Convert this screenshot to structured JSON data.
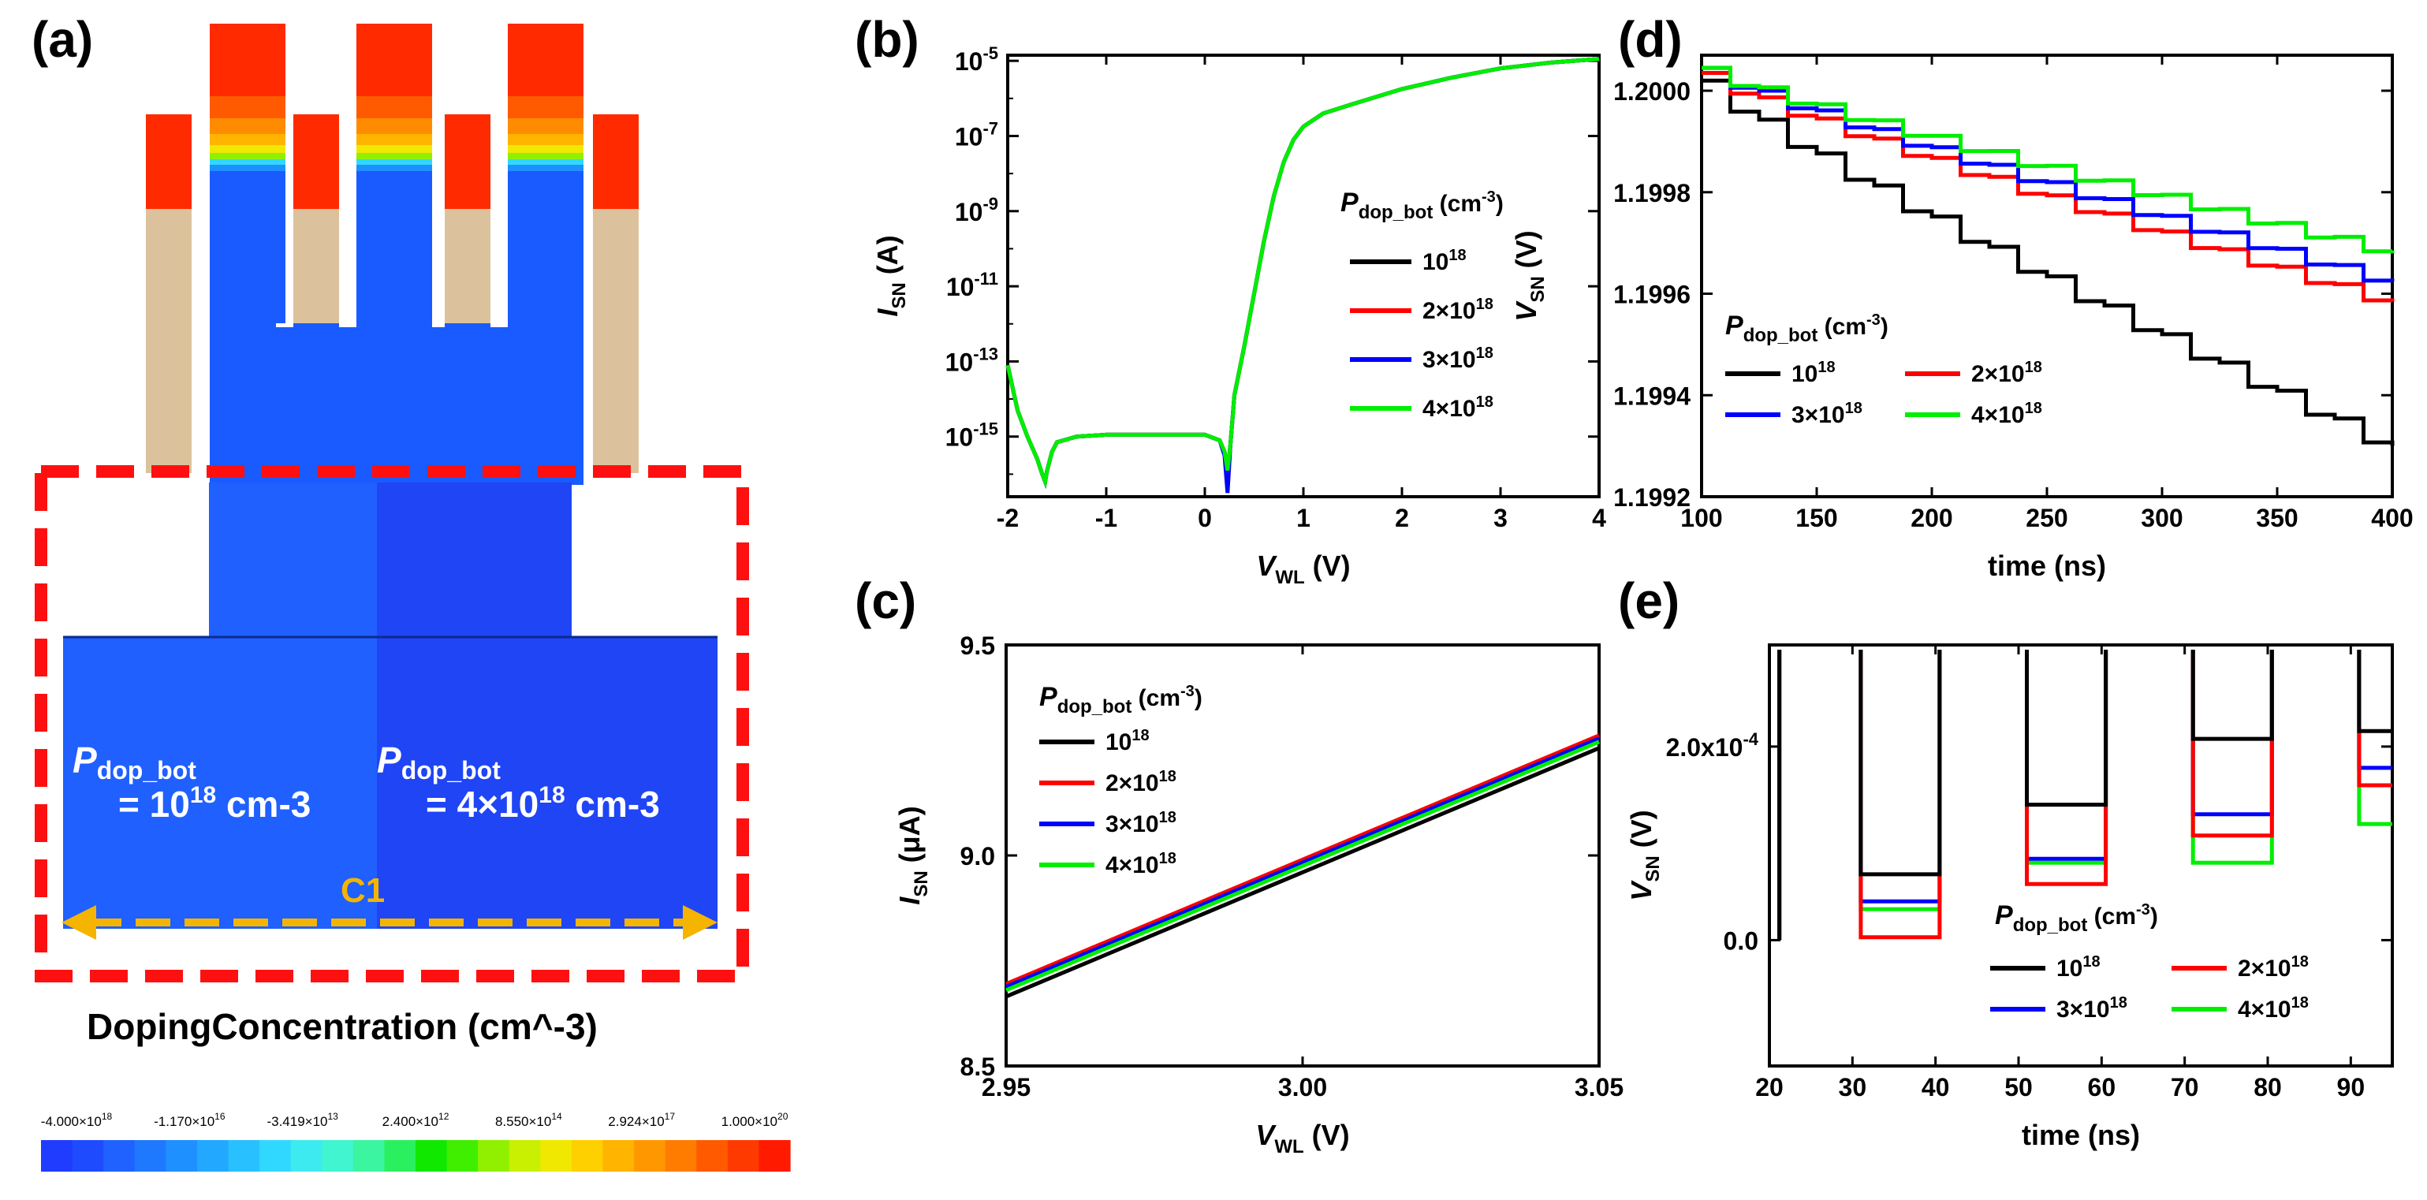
{
  "colors": {
    "s1e18": "#000000",
    "s2e18": "#ff0000",
    "s3e18": "#0000ff",
    "s4e18": "#00ee00",
    "device_blue": "#1a5bff",
    "device_blue_dark": "#1f3ff0",
    "dash_red": "#ff1010",
    "arrow_orange": "#f5b400",
    "contact_red": "#ff2a00",
    "spacer_tan": "#dcc29c"
  },
  "panel_a": {
    "letter": "(a)",
    "left_label": {
      "P": "P",
      "sub": "dop_bot",
      "eq": "= 10",
      "exp": "18",
      "unit": " cm-3"
    },
    "right_label": {
      "P": "P",
      "sub": "dop_bot",
      "eq": "= 4×10",
      "exp": "18",
      "unit": " cm-3"
    },
    "cutline_label": "C1",
    "colorbar_title": "DopingConcentration (cm^-3)",
    "colorbar_ticks": [
      "-4.000×10^18",
      "-1.170×10^16",
      "-3.419×10^13",
      "2.400×10^12",
      "8.550×10^14",
      "2.924×10^17",
      "1.000×10^20"
    ],
    "colorbar_colors": [
      "#1f3cff",
      "#1f4bff",
      "#1f62ff",
      "#1f79ff",
      "#1f90ff",
      "#22a8ff",
      "#28c0ff",
      "#30d8ff",
      "#3deaf0",
      "#40f5d0",
      "#3cf5a0",
      "#2af060",
      "#10e800",
      "#40ee00",
      "#90f000",
      "#c8f000",
      "#f0e800",
      "#ffd000",
      "#ffb400",
      "#ff9800",
      "#ff7c00",
      "#ff5a00",
      "#ff3a00",
      "#ff1a00"
    ]
  },
  "chart_data": [
    {
      "id": "b",
      "letter": "(b)",
      "type": "line",
      "yscale": "log",
      "xlabel": {
        "main": "V",
        "sub": "WL",
        "tail": " (V)"
      },
      "ylabel": {
        "main": "I",
        "sub": "SN",
        "tail": " (A)"
      },
      "xlim": [
        -2,
        4
      ],
      "ylim_log10": [
        -16.6,
        -4.85
      ],
      "xticks": [
        "-2",
        "-1",
        "0",
        "1",
        "2",
        "3",
        "4"
      ],
      "yticks": [
        {
          "base": "10",
          "exp": "-5"
        },
        {
          "base": "10",
          "exp": "-7"
        },
        {
          "base": "10",
          "exp": "-9"
        },
        {
          "base": "10",
          "exp": "-11"
        },
        {
          "base": "10",
          "exp": "-13"
        },
        {
          "base": "10",
          "exp": "-15"
        }
      ],
      "legend_title": {
        "P": "P",
        "sub": "dop_bot",
        "unit": " (cm",
        "exp": "-3",
        "close": ")"
      },
      "legend": [
        {
          "base": "10",
          "exp": "18"
        },
        {
          "base": "2×10",
          "exp": "18"
        },
        {
          "base": "3×10",
          "exp": "18"
        },
        {
          "base": "4×10",
          "exp": "18"
        }
      ],
      "series": [
        {
          "name": "1e18",
          "x": [
            -2.0,
            -1.9,
            -1.8,
            -1.7,
            -1.65,
            -1.62,
            -1.6,
            -1.55,
            -1.5,
            -1.3,
            -1.0,
            -0.5,
            0.0,
            0.15,
            0.2,
            0.23,
            0.26,
            0.3,
            0.4,
            0.5,
            0.6,
            0.7,
            0.8,
            0.9,
            1.0,
            1.2,
            1.5,
            2.0,
            2.5,
            3.0,
            3.5,
            4.0
          ],
          "log10y": [
            -13.1,
            -14.3,
            -15.0,
            -15.6,
            -16.0,
            -16.2,
            -15.9,
            -15.4,
            -15.15,
            -15.0,
            -14.95,
            -14.95,
            -14.95,
            -15.1,
            -15.4,
            -15.9,
            -15.2,
            -13.9,
            -12.6,
            -11.2,
            -9.8,
            -8.6,
            -7.7,
            -7.1,
            -6.75,
            -6.4,
            -6.15,
            -5.75,
            -5.45,
            -5.2,
            -5.05,
            -4.95
          ]
        },
        {
          "name": "2e18",
          "x": [
            -2.0,
            -1.9,
            -1.8,
            -1.7,
            -1.65,
            -1.62,
            -1.6,
            -1.55,
            -1.5,
            -1.3,
            -1.0,
            -0.5,
            0.0,
            0.15,
            0.2,
            0.23,
            0.26,
            0.3,
            0.4,
            0.5,
            0.6,
            0.7,
            0.8,
            0.9,
            1.0,
            1.2,
            1.5,
            2.0,
            2.5,
            3.0,
            3.5,
            4.0
          ],
          "log10y": [
            -13.1,
            -14.3,
            -15.0,
            -15.6,
            -16.0,
            -16.2,
            -15.9,
            -15.4,
            -15.15,
            -15.0,
            -14.95,
            -14.95,
            -14.95,
            -15.1,
            -15.4,
            -16.0,
            -15.2,
            -13.9,
            -12.6,
            -11.2,
            -9.8,
            -8.6,
            -7.7,
            -7.1,
            -6.75,
            -6.4,
            -6.15,
            -5.75,
            -5.45,
            -5.2,
            -5.05,
            -4.95
          ]
        },
        {
          "name": "3e18",
          "x": [
            -2.0,
            -1.9,
            -1.8,
            -1.7,
            -1.65,
            -1.62,
            -1.6,
            -1.55,
            -1.5,
            -1.3,
            -1.0,
            -0.5,
            0.0,
            0.15,
            0.2,
            0.23,
            0.26,
            0.3,
            0.4,
            0.5,
            0.6,
            0.7,
            0.8,
            0.9,
            1.0,
            1.2,
            1.5,
            2.0,
            2.5,
            3.0,
            3.5,
            4.0
          ],
          "log10y": [
            -13.1,
            -14.3,
            -15.0,
            -15.6,
            -16.0,
            -16.2,
            -15.9,
            -15.4,
            -15.15,
            -15.0,
            -14.95,
            -14.95,
            -14.95,
            -15.1,
            -15.5,
            -16.5,
            -15.2,
            -13.9,
            -12.6,
            -11.2,
            -9.8,
            -8.6,
            -7.7,
            -7.1,
            -6.75,
            -6.4,
            -6.15,
            -5.75,
            -5.45,
            -5.2,
            -5.05,
            -4.95
          ]
        },
        {
          "name": "4e18",
          "x": [
            -2.0,
            -1.9,
            -1.8,
            -1.7,
            -1.65,
            -1.62,
            -1.6,
            -1.55,
            -1.5,
            -1.3,
            -1.0,
            -0.5,
            0.0,
            0.15,
            0.2,
            0.23,
            0.26,
            0.3,
            0.4,
            0.5,
            0.6,
            0.7,
            0.8,
            0.9,
            1.0,
            1.2,
            1.5,
            2.0,
            2.5,
            3.0,
            3.5,
            4.0
          ],
          "log10y": [
            -13.1,
            -14.3,
            -15.0,
            -15.6,
            -16.0,
            -16.2,
            -15.9,
            -15.4,
            -15.15,
            -15.0,
            -14.95,
            -14.95,
            -14.95,
            -15.1,
            -15.4,
            -15.9,
            -15.2,
            -13.9,
            -12.6,
            -11.2,
            -9.8,
            -8.6,
            -7.7,
            -7.1,
            -6.75,
            -6.4,
            -6.15,
            -5.75,
            -5.45,
            -5.2,
            -5.05,
            -4.95
          ]
        }
      ]
    },
    {
      "id": "c",
      "letter": "(c)",
      "type": "line",
      "xlabel": {
        "main": "V",
        "sub": "WL",
        "tail": " (V)"
      },
      "ylabel": {
        "main": "I",
        "sub": "SN",
        "tail": " (μA)"
      },
      "xlim": [
        2.95,
        3.05
      ],
      "ylim": [
        8.5,
        9.5
      ],
      "xticks": [
        "2.95",
        "3.00",
        "3.05"
      ],
      "yticks": [
        "9.5",
        "9.0",
        "8.5"
      ],
      "legend_title": {
        "P": "P",
        "sub": "dop_bot",
        "unit": " (cm",
        "exp": "-3",
        "close": ")"
      },
      "legend": [
        {
          "base": "10",
          "exp": "18"
        },
        {
          "base": "2×10",
          "exp": "18"
        },
        {
          "base": "3×10",
          "exp": "18"
        },
        {
          "base": "4×10",
          "exp": "18"
        }
      ],
      "series": [
        {
          "name": "1e18",
          "x": [
            2.95,
            3.05
          ],
          "y": [
            8.665,
            9.255
          ]
        },
        {
          "name": "2e18",
          "x": [
            2.95,
            3.05
          ],
          "y": [
            8.695,
            9.285
          ]
        },
        {
          "name": "3e18",
          "x": [
            2.95,
            3.05
          ],
          "y": [
            8.688,
            9.278
          ]
        },
        {
          "name": "4e18",
          "x": [
            2.95,
            3.05
          ],
          "y": [
            8.68,
            9.27
          ]
        }
      ]
    },
    {
      "id": "d",
      "letter": "(d)",
      "type": "line",
      "xlabel": {
        "main": "time (ns)"
      },
      "ylabel": {
        "main": "V",
        "sub": "SN",
        "tail": " (V)"
      },
      "xlim": [
        100,
        400
      ],
      "ylim": [
        1.1992,
        1.20007
      ],
      "xticks": [
        "100",
        "150",
        "200",
        "250",
        "300",
        "350",
        "400"
      ],
      "yticks": [
        "1.2000",
        "1.1998",
        "1.1996",
        "1.1994",
        "1.1992"
      ],
      "legend_title": {
        "P": "P",
        "sub": "dop_bot",
        "unit": " (cm",
        "exp": "-3",
        "close": ")"
      },
      "legend": [
        {
          "base": "10",
          "exp": "18"
        },
        {
          "base": "2×10",
          "exp": "18"
        },
        {
          "base": "3×10",
          "exp": "18"
        },
        {
          "base": "4×10",
          "exp": "18"
        }
      ],
      "series": [
        {
          "name": "1e18",
          "start": 1.2,
          "end": 1.19928,
          "wiggle": 4e-05
        },
        {
          "name": "2e18",
          "start": 1.20002,
          "end": 1.19957,
          "wiggle": 3e-05
        },
        {
          "name": "3e18",
          "start": 1.20003,
          "end": 1.19961,
          "wiggle": 3e-05
        },
        {
          "name": "4e18",
          "start": 1.20003,
          "end": 1.19967,
          "wiggle": 3e-05
        }
      ]
    },
    {
      "id": "e",
      "letter": "(e)",
      "type": "line",
      "xlabel": {
        "main": "time (ns)"
      },
      "ylabel": {
        "main": "V",
        "sub": "SN",
        "tail": " (V)"
      },
      "xlim": [
        20,
        95
      ],
      "ylim": [
        -0.00013,
        0.000305
      ],
      "xticks": [
        "20",
        "30",
        "40",
        "50",
        "60",
        "70",
        "80",
        "90"
      ],
      "yticks": [
        {
          "base": "2.0x10",
          "exp": "-4"
        },
        {
          "base": "0.0",
          "exp": ""
        }
      ],
      "legend_title": {
        "P": "P",
        "sub": "dop_bot",
        "unit": " (cm",
        "exp": "-3",
        "close": ")"
      },
      "legend": [
        {
          "base": "10",
          "exp": "18"
        },
        {
          "base": "2×10",
          "exp": "18"
        },
        {
          "base": "3×10",
          "exp": "18"
        },
        {
          "base": "4×10",
          "exp": "18"
        }
      ],
      "series": [
        {
          "name": "1e18",
          "levels": [
            6.8e-05,
            0.00014,
            0.000208,
            0.000216
          ]
        },
        {
          "name": "2e18",
          "levels": [
            3e-06,
            5.8e-05,
            0.000108,
            0.00016
          ]
        },
        {
          "name": "3e18",
          "levels": [
            4e-05,
            8.4e-05,
            0.00013,
            0.000178
          ]
        },
        {
          "name": "4e18",
          "levels": [
            3.2e-05,
            8e-05,
            8e-05,
            0.00012
          ]
        }
      ]
    }
  ]
}
